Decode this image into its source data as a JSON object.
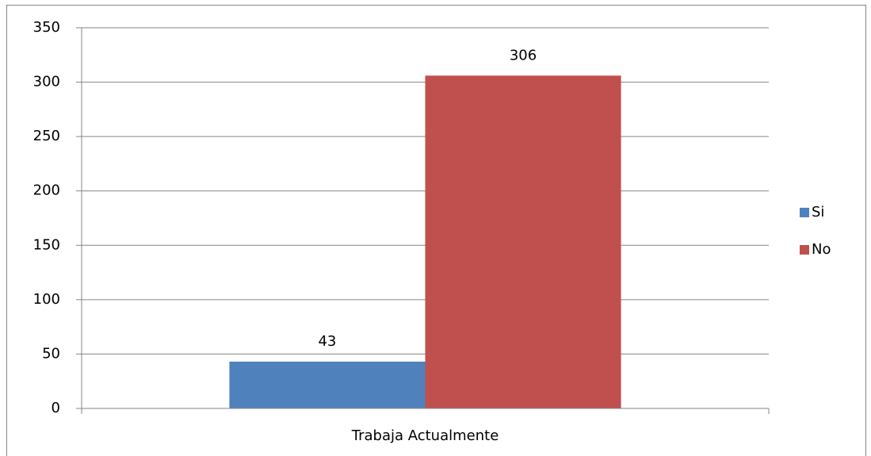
{
  "chart_data": {
    "type": "bar",
    "categories": [
      "Trabaja Actualmente"
    ],
    "series": [
      {
        "name": "Si",
        "color": "#4f81bd",
        "values": [
          43
        ]
      },
      {
        "name": "No",
        "color": "#c0504d",
        "values": [
          306
        ]
      }
    ],
    "ylim": [
      0,
      350
    ],
    "yticks": [
      0,
      50,
      100,
      150,
      200,
      250,
      300,
      350
    ],
    "grid": true,
    "legend": "right",
    "data_labels": true
  }
}
